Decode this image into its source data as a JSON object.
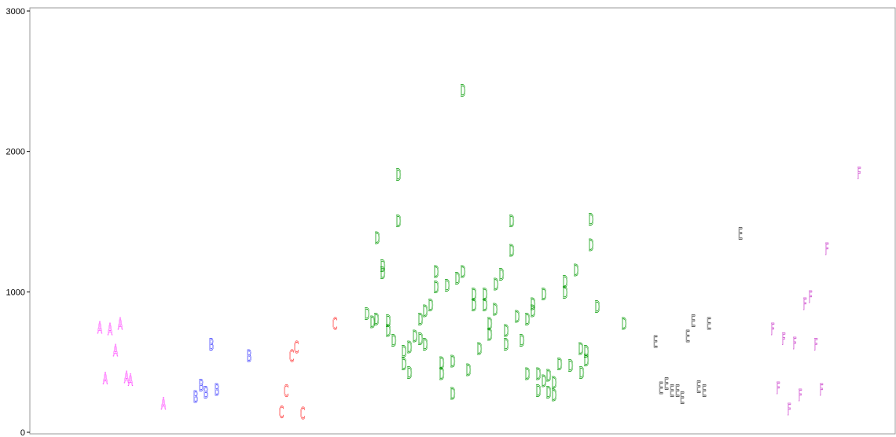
{
  "chart_data": {
    "type": "scatter",
    "title": "",
    "xlabel": "",
    "ylabel": "",
    "ylim": [
      0,
      3000
    ],
    "grid": false,
    "yticks": [
      "0",
      "1000",
      "2000",
      "3000"
    ],
    "series": [
      {
        "name": "A",
        "color": "#ff33ff",
        "points": [
          [
            127,
            740
          ],
          [
            140,
            730
          ],
          [
            153,
            770
          ],
          [
            147,
            580
          ],
          [
            134,
            380
          ],
          [
            161,
            390
          ],
          [
            166,
            370
          ],
          [
            208,
            200
          ]
        ]
      },
      {
        "name": "B",
        "color": "#3333ff",
        "points": [
          [
            269,
            620
          ],
          [
            317,
            540
          ],
          [
            249,
            250
          ],
          [
            256,
            330
          ],
          [
            262,
            280
          ],
          [
            276,
            300
          ]
        ]
      },
      {
        "name": "C",
        "color": "#ff3333",
        "points": [
          [
            426,
            770
          ],
          [
            377,
            600
          ],
          [
            371,
            540
          ],
          [
            364,
            290
          ],
          [
            358,
            140
          ],
          [
            385,
            130
          ]
        ]
      },
      {
        "name": "D",
        "color": "#009900",
        "points": [
          [
            589,
            2430
          ],
          [
            507,
            1830
          ],
          [
            507,
            1500
          ],
          [
            651,
            1500
          ],
          [
            752,
            1510
          ],
          [
            480,
            1380
          ],
          [
            651,
            1290
          ],
          [
            752,
            1330
          ],
          [
            487,
            1180
          ],
          [
            487,
            1130
          ],
          [
            589,
            1140
          ],
          [
            555,
            1140
          ],
          [
            582,
            1090
          ],
          [
            555,
            1030
          ],
          [
            569,
            1040
          ],
          [
            638,
            1120
          ],
          [
            631,
            1050
          ],
          [
            733,
            1150
          ],
          [
            719,
            1070
          ],
          [
            719,
            990
          ],
          [
            603,
            980
          ],
          [
            617,
            980
          ],
          [
            603,
            900
          ],
          [
            617,
            900
          ],
          [
            692,
            980
          ],
          [
            678,
            910
          ],
          [
            678,
            860
          ],
          [
            630,
            870
          ],
          [
            658,
            820
          ],
          [
            671,
            800
          ],
          [
            548,
            900
          ],
          [
            541,
            860
          ],
          [
            535,
            800
          ],
          [
            467,
            840
          ],
          [
            479,
            800
          ],
          [
            474,
            780
          ],
          [
            494,
            790
          ],
          [
            494,
            720
          ],
          [
            501,
            650
          ],
          [
            623,
            770
          ],
          [
            623,
            690
          ],
          [
            644,
            720
          ],
          [
            644,
            620
          ],
          [
            664,
            650
          ],
          [
            739,
            590
          ],
          [
            746,
            570
          ],
          [
            746,
            510
          ],
          [
            740,
            420
          ],
          [
            760,
            890
          ],
          [
            794,
            770
          ],
          [
            514,
            570
          ],
          [
            521,
            600
          ],
          [
            528,
            680
          ],
          [
            535,
            660
          ],
          [
            541,
            620
          ],
          [
            514,
            480
          ],
          [
            521,
            420
          ],
          [
            562,
            490
          ],
          [
            576,
            500
          ],
          [
            562,
            410
          ],
          [
            576,
            270
          ],
          [
            596,
            440
          ],
          [
            610,
            590
          ],
          [
            671,
            410
          ],
          [
            685,
            410
          ],
          [
            692,
            360
          ],
          [
            698,
            400
          ],
          [
            705,
            350
          ],
          [
            712,
            480
          ],
          [
            726,
            470
          ],
          [
            685,
            290
          ],
          [
            698,
            280
          ],
          [
            705,
            260
          ]
        ]
      },
      {
        "name": "E",
        "color": "#333333",
        "points": [
          [
            942,
            1410
          ],
          [
            834,
            640
          ],
          [
            882,
            790
          ],
          [
            875,
            680
          ],
          [
            902,
            770
          ],
          [
            841,
            310
          ],
          [
            848,
            340
          ],
          [
            855,
            290
          ],
          [
            862,
            290
          ],
          [
            868,
            240
          ],
          [
            889,
            320
          ],
          [
            896,
            290
          ]
        ]
      },
      {
        "name": "F",
        "color": "#cc44cc",
        "points": [
          [
            1093,
            1840
          ],
          [
            1052,
            1300
          ],
          [
            1031,
            960
          ],
          [
            1024,
            910
          ],
          [
            983,
            730
          ],
          [
            997,
            660
          ],
          [
            1011,
            630
          ],
          [
            1038,
            620
          ],
          [
            990,
            310
          ],
          [
            1018,
            260
          ],
          [
            1045,
            300
          ],
          [
            1004,
            160
          ]
        ]
      }
    ]
  }
}
